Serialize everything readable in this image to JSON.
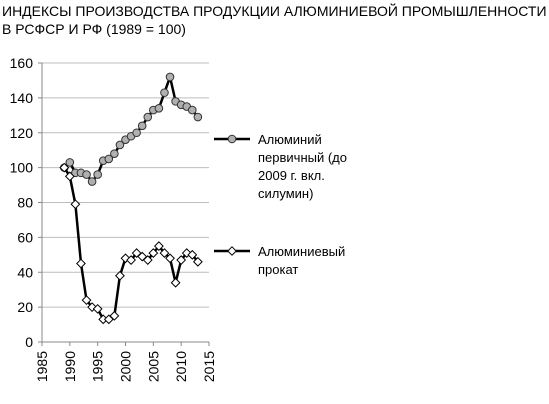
{
  "chart_data": {
    "type": "line",
    "title": [
      "ИНДЕКСЫ ПРОИЗВОДСТВА ПРОДУКЦИИ АЛЮМИНИЕВОЙ ПРОМЫШЛЕННОСТИ",
      "В  РСФСР  И  РФ (1989 = 100)"
    ],
    "xlabel": "",
    "ylabel": "",
    "xlim": [
      1985,
      2015
    ],
    "ylim": [
      0,
      160
    ],
    "xticks": [
      1985,
      1990,
      1995,
      2000,
      2005,
      2010,
      2015
    ],
    "yticks": [
      0,
      20,
      40,
      60,
      80,
      100,
      120,
      140,
      160
    ],
    "grid": "horizontal",
    "legend_position": "right",
    "series": [
      {
        "name": [
          "Алюминий",
          "первичный (до",
          "2009 г. вкл.",
          "силумин)"
        ],
        "marker": "circle",
        "color": "#000000",
        "marker_fill": "#b0b0b0",
        "x": [
          1989,
          1990,
          1991,
          1992,
          1993,
          1994,
          1995,
          1996,
          1997,
          1998,
          1999,
          2000,
          2001,
          2002,
          2003,
          2004,
          2005,
          2006,
          2007,
          2008,
          2009,
          2010,
          2011,
          2012,
          2013
        ],
        "values": [
          100,
          103,
          97,
          97,
          96,
          92,
          96,
          104,
          105,
          108,
          113,
          116,
          118,
          120,
          124,
          129,
          133,
          134,
          143,
          152,
          138,
          136,
          135,
          133,
          129
        ]
      },
      {
        "name": [
          "Алюминиевый",
          "прокат"
        ],
        "marker": "diamond",
        "color": "#000000",
        "marker_fill": "#ffffff",
        "x": [
          1989,
          1990,
          1991,
          1992,
          1993,
          1994,
          1995,
          1996,
          1997,
          1998,
          1999,
          2000,
          2001,
          2002,
          2003,
          2004,
          2005,
          2006,
          2007,
          2008,
          2009,
          2010,
          2011,
          2012,
          2013
        ],
        "values": [
          100,
          95,
          79,
          45,
          24,
          20,
          19,
          13,
          13,
          15,
          38,
          48,
          47,
          51,
          49,
          47,
          51,
          55,
          51,
          48,
          34,
          47,
          51,
          50,
          46
        ]
      }
    ]
  }
}
